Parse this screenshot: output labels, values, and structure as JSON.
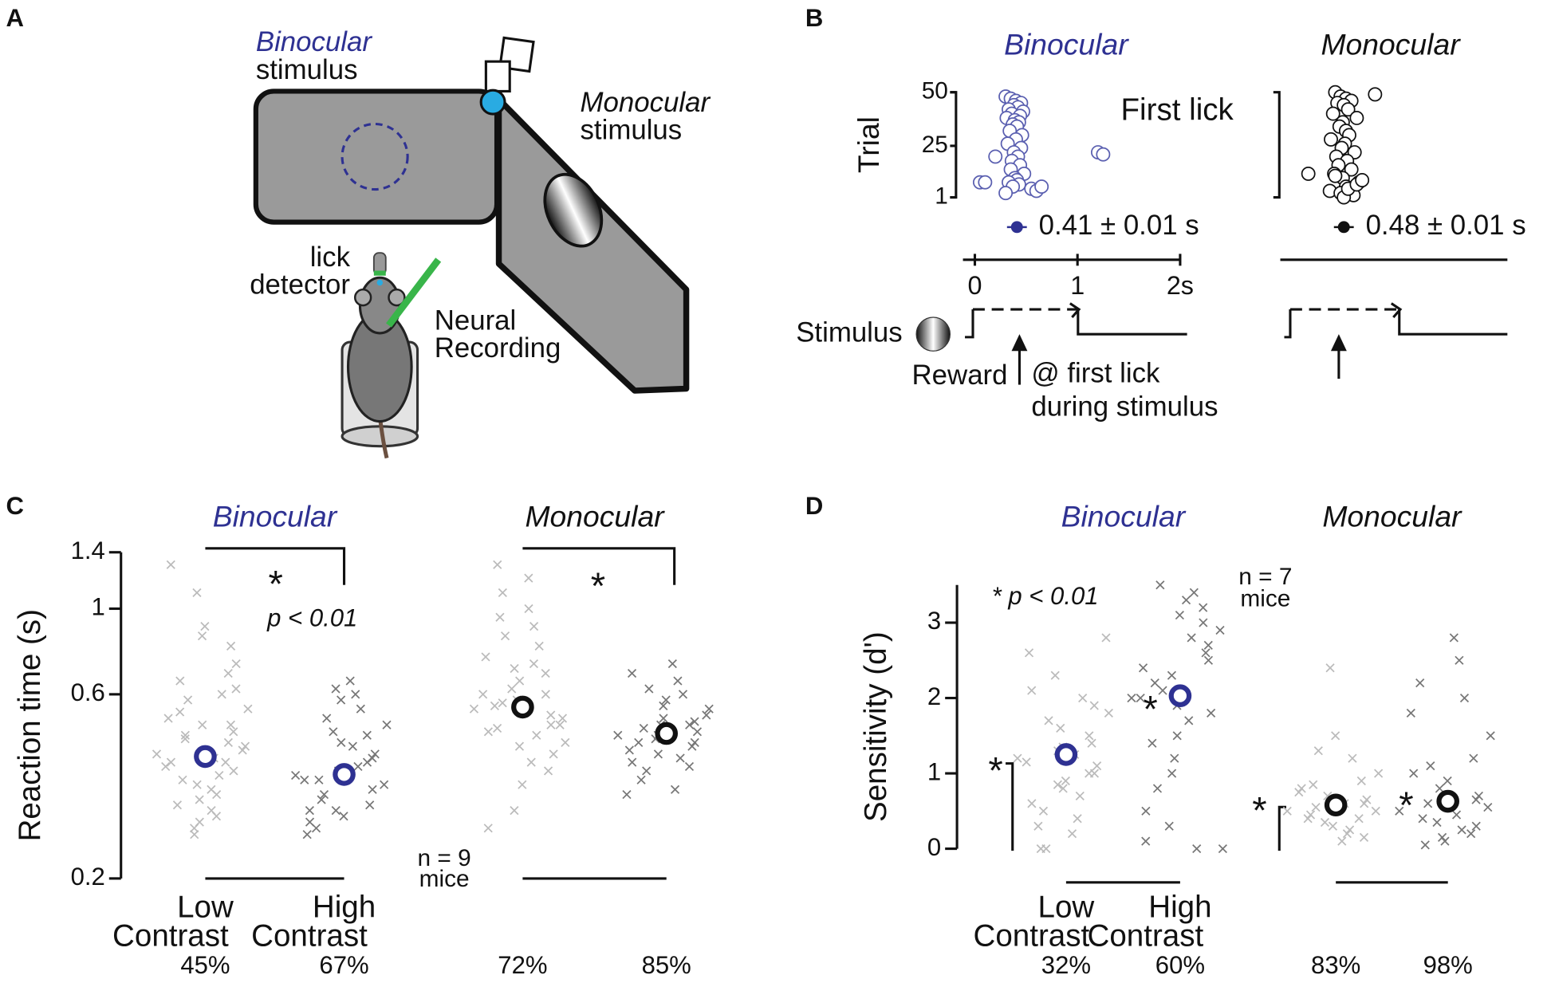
{
  "panel_labels": [
    "A",
    "B",
    "C",
    "D"
  ],
  "diagram": {
    "binocular": "Binocular",
    "binocular_sub": "stimulus",
    "monocular": "Monocular",
    "monocular_sub": "stimulus",
    "lick_detector": [
      "lick",
      "detector"
    ],
    "neural_recording": [
      "Neural",
      "Recording"
    ]
  },
  "timeline": {
    "stimulus": "Stimulus",
    "reward": "Reward",
    "reward_note": [
      "@ first lick",
      "during stimulus"
    ]
  },
  "chart_data": [
    {
      "type": "scatter",
      "title": "Binocular",
      "title_color": "#2e3192",
      "color": "#5a5fb0",
      "y_label": "Trial",
      "annotation": "First lick",
      "x": [
        0.3,
        0.35,
        0.4,
        0.45,
        0.38,
        0.42,
        0.33,
        0.47,
        0.36,
        0.44,
        0.31,
        0.39,
        0.43,
        0.37,
        0.41,
        0.34,
        0.46,
        0.4,
        0.32,
        0.45,
        0.38,
        0.42,
        0.36,
        0.44,
        0.35,
        0.48,
        0.39,
        0.41,
        0.33,
        0.43,
        0.37,
        0.55,
        0.6,
        0.65,
        0.05,
        0.1,
        0.2,
        1.2,
        1.25,
        0.3
      ],
      "y": [
        48,
        47,
        46,
        45,
        44,
        43,
        42,
        41,
        40,
        39,
        38,
        37,
        36,
        35,
        34,
        32,
        30,
        28,
        26,
        24,
        22,
        20,
        18,
        16,
        14,
        12,
        10,
        9,
        8,
        7,
        6,
        5,
        4,
        6,
        8,
        8,
        20,
        22,
        21,
        3
      ],
      "xlim": [
        0,
        2
      ],
      "xticks": [
        0,
        1,
        {
          "value": 2,
          "label": "2s"
        }
      ],
      "ylim": [
        1,
        50
      ],
      "yticks": [
        1,
        25,
        50
      ],
      "mean": {
        "values": [
          0.41
        ],
        "value_labels": [
          "0.41 ± 0.01 s"
        ],
        "color": "#2e3192"
      }
    },
    {
      "type": "scatter",
      "title": "Monocular",
      "title_color": "#111111",
      "color": "#111111",
      "x": [
        0.4,
        0.45,
        0.5,
        0.55,
        0.42,
        0.48,
        0.52,
        0.38,
        0.6,
        0.47,
        0.44,
        0.5,
        0.53,
        0.36,
        0.49,
        0.46,
        0.58,
        0.41,
        0.51,
        0.43,
        0.55,
        0.39,
        0.47,
        0.62,
        0.5,
        0.35,
        0.45,
        0.57,
        0.48,
        0.52,
        0.77,
        0.15,
        0.6,
        0.65,
        0.4
      ],
      "y": [
        50,
        48,
        47,
        46,
        45,
        44,
        42,
        40,
        38,
        36,
        34,
        32,
        30,
        28,
        26,
        24,
        22,
        20,
        18,
        16,
        14,
        12,
        10,
        8,
        6,
        4,
        3,
        2,
        1,
        5,
        49,
        12,
        7,
        9,
        11
      ],
      "xlim": [
        0,
        2
      ],
      "ylim": [
        1,
        50
      ],
      "mean": {
        "values": [
          0.48
        ],
        "value_labels": [
          "0.48 ± 0.01 s"
        ],
        "color": "#111111"
      }
    },
    {
      "type": "strip",
      "y_label": "Reaction time (s)",
      "log_y": true,
      "ylim": [
        0.2,
        1.4
      ],
      "yticks": [
        0.2,
        0.6,
        1,
        1.4
      ],
      "annotations": [
        "*",
        "p < 0.01",
        "*",
        "n = 9",
        "mice"
      ],
      "groups": [
        {
          "title": "Binocular",
          "title_color": "#2e3192",
          "mean_color": "#2e3192",
          "categories": [
            [
              "Low",
              "Contrast"
            ],
            [
              "High",
              "Contrast"
            ]
          ],
          "series": [
            {
              "color": "#bbbbbb",
              "mean": 0.414,
              "percent_label": "45%",
              "values": [
                0.42,
                0.38,
                0.45,
                0.5,
                0.35,
                0.4,
                0.55,
                0.6,
                0.33,
                0.3,
                0.47,
                0.65,
                0.72,
                0.8,
                0.9,
                0.28,
                0.26,
                0.52,
                0.44,
                0.37,
                0.41,
                0.58,
                0.36,
                0.31,
                0.48,
                0.68,
                0.85,
                1.1,
                1.3,
                0.39,
                0.43,
                0.29,
                0.34,
                0.46,
                0.54,
                0.62,
                0.5,
                0.4,
                0.32,
                0.27
              ]
            },
            {
              "color": "#777777",
              "mean": 0.372,
              "percent_label": "67%",
              "values": [
                0.37,
                0.34,
                0.4,
                0.45,
                0.3,
                0.28,
                0.5,
                0.55,
                0.6,
                0.65,
                0.33,
                0.36,
                0.42,
                0.31,
                0.29,
                0.38,
                0.48,
                0.26,
                0.35,
                0.39,
                0.44,
                0.52,
                0.32,
                0.27,
                0.41,
                0.47,
                0.58,
                0.62,
                0.3,
                0.36
              ]
            }
          ]
        },
        {
          "title": "Monocular",
          "title_color": "#111111",
          "mean_color": "#111111",
          "series": [
            {
              "color": "#bbbbbb",
              "mean": 0.556,
              "percent_label": "72%",
              "values": [
                0.55,
                0.5,
                0.6,
                0.65,
                0.7,
                0.48,
                0.45,
                0.8,
                0.9,
                1.0,
                1.1,
                1.3,
                0.42,
                0.38,
                0.35,
                0.58,
                0.62,
                0.75,
                0.52,
                0.47,
                0.4,
                0.85,
                0.95,
                0.56,
                0.53,
                0.68,
                0.44,
                0.3,
                0.27,
                0.6,
                0.5,
                0.72,
                1.2,
                0.57,
                0.49
              ]
            },
            {
              "color": "#777777",
              "mean": 0.475,
              "percent_label": "85%",
              "values": [
                0.47,
                0.45,
                0.5,
                0.52,
                0.42,
                0.4,
                0.55,
                0.6,
                0.65,
                0.72,
                0.38,
                0.36,
                0.48,
                0.44,
                0.58,
                0.5,
                0.46,
                0.43,
                0.53,
                0.41,
                0.34,
                0.62,
                0.49,
                0.45,
                0.51,
                0.39,
                0.56,
                0.47,
                0.68,
                0.33
              ]
            }
          ]
        }
      ]
    },
    {
      "type": "strip",
      "y_label": "Sensitivity (d')",
      "log_y": false,
      "ylim": [
        0,
        3.5
      ],
      "yticks": [
        0,
        1,
        2,
        3
      ],
      "annotations": [
        "* p < 0.01",
        "n = 7",
        "mice",
        "*",
        "*",
        "*",
        "*"
      ],
      "groups": [
        {
          "title": "Binocular",
          "title_color": "#2e3192",
          "mean_color": "#2e3192",
          "categories": [
            [
              "Low",
              "Contrast"
            ],
            [
              "High",
              "Contrast"
            ]
          ],
          "series": [
            {
              "color": "#bbbbbb",
              "mean": 1.25,
              "percent_label": "32%",
              "values": [
                1.2,
                1.0,
                1.5,
                0.8,
                1.3,
                0.6,
                1.8,
                2.0,
                0.4,
                0.2,
                0,
                0,
                1.1,
                1.4,
                0.9,
                1.6,
                2.3,
                2.6,
                2.8,
                0.7,
                1.25,
                1.7,
                0.5,
                0.3,
                1.9,
                1.0,
                1.35,
                0.85,
                2.1,
                1.15
              ]
            },
            {
              "color": "#777777",
              "mean": 2.03,
              "percent_label": "60%",
              "values": [
                2.0,
                2.5,
                3.0,
                1.5,
                1.0,
                0.5,
                0,
                0,
                2.8,
                3.3,
                3.5,
                2.2,
                1.8,
                2.6,
                3.1,
                1.2,
                0.3,
                2.4,
                2.9,
                3.4,
                1.7,
                2.1,
                0.8,
                1.4,
                2.7,
                3.2,
                1.9,
                2.3,
                0.1,
                2.0
              ]
            }
          ]
        },
        {
          "title": "Monocular",
          "title_color": "#111111",
          "mean_color": "#111111",
          "series": [
            {
              "color": "#bbbbbb",
              "mean": 0.58,
              "percent_label": "83%",
              "values": [
                0.5,
                0.6,
                0.4,
                0.3,
                0.7,
                0.8,
                1.0,
                1.2,
                0.2,
                0.1,
                0.55,
                0.45,
                0.65,
                0.9,
                1.5,
                2.4,
                0.35,
                0.75,
                0.5,
                0.25,
                0.6,
                1.3,
                0.85,
                0.4,
                0.15
              ]
            },
            {
              "color": "#777777",
              "mean": 0.63,
              "percent_label": "98%",
              "values": [
                0.5,
                0.3,
                0.2,
                0.1,
                0.8,
                1.0,
                1.5,
                2.0,
                2.5,
                2.8,
                0.6,
                0.4,
                0.7,
                1.2,
                0.9,
                0.15,
                0.35,
                1.8,
                0.55,
                0.25,
                0.45,
                1.1,
                0.05,
                2.2,
                0.65
              ]
            }
          ]
        }
      ]
    }
  ]
}
